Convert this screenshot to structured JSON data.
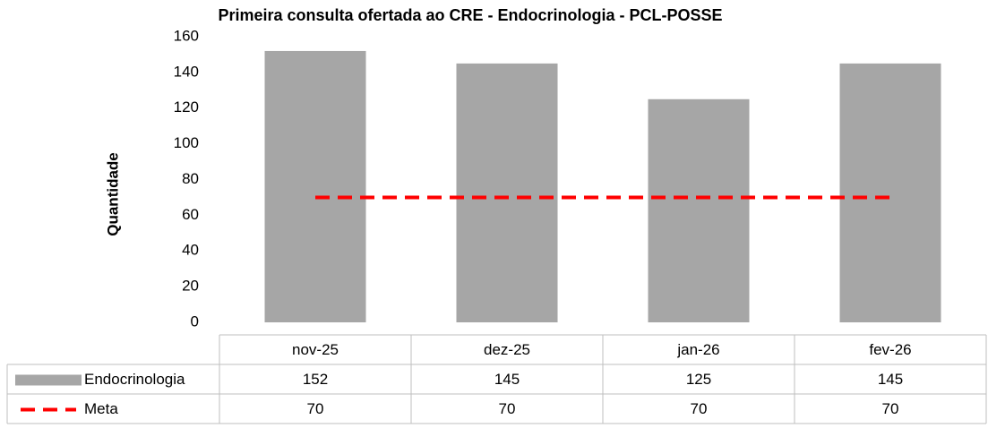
{
  "chart_data": {
    "type": "bar_line_table",
    "title": "Primeira consulta ofertada ao CRE - Endocrinologia - PCL-POSSE",
    "y_label": "Quantidade",
    "categories": [
      "nov-25",
      "dez-25",
      "jan-26",
      "fev-26"
    ],
    "series": [
      {
        "name": "Endocrinologia",
        "type": "bar",
        "color": "#a6a6a6",
        "values": [
          152,
          145,
          125,
          145
        ]
      },
      {
        "name": "Meta",
        "type": "line",
        "dashed": true,
        "color": "#ff0000",
        "values": [
          70,
          70,
          70,
          70
        ]
      }
    ],
    "ylim": [
      0,
      160
    ],
    "yticks": [
      0,
      20,
      40,
      60,
      80,
      100,
      120,
      140,
      160
    ]
  }
}
